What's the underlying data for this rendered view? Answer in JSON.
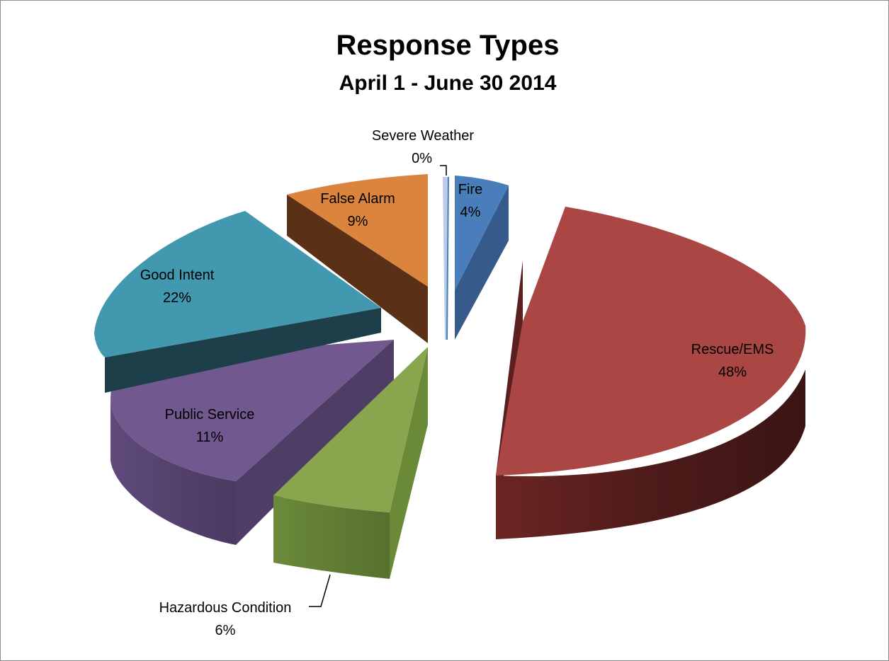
{
  "chart_data": {
    "type": "pie",
    "title": "Response Types",
    "subtitle": "April 1 - June 30 2014",
    "slices": [
      {
        "name": "Fire",
        "value": 4,
        "label": "4%",
        "color": "#4a7ebb"
      },
      {
        "name": "Rescue/EMS",
        "value": 48,
        "label": "48%",
        "color": "#aa4644"
      },
      {
        "name": "Hazardous Condition",
        "value": 6,
        "label": "6%",
        "color": "#89a54e"
      },
      {
        "name": "Public Service",
        "value": 11,
        "label": "11%",
        "color": "#71588f"
      },
      {
        "name": "Good Intent",
        "value": 22,
        "label": "22%",
        "color": "#4198af"
      },
      {
        "name": "False Alarm",
        "value": 9,
        "label": "9%",
        "color": "#db843d"
      },
      {
        "name": "Severe Weather",
        "value": 0,
        "label": "0%",
        "color": "#93a9cf"
      }
    ],
    "legend": "none",
    "exploded": true,
    "three_d": true
  }
}
